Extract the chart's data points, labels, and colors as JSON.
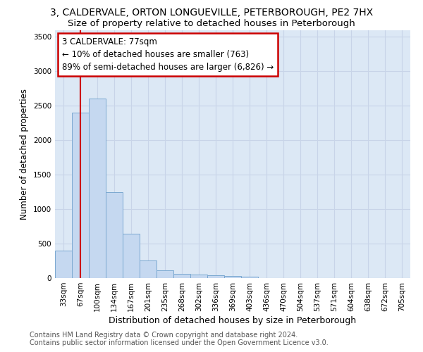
{
  "title": "3, CALDERVALE, ORTON LONGUEVILLE, PETERBOROUGH, PE2 7HX",
  "subtitle": "Size of property relative to detached houses in Peterborough",
  "xlabel": "Distribution of detached houses by size in Peterborough",
  "ylabel": "Number of detached properties",
  "categories": [
    "33sqm",
    "67sqm",
    "100sqm",
    "134sqm",
    "167sqm",
    "201sqm",
    "235sqm",
    "268sqm",
    "302sqm",
    "336sqm",
    "369sqm",
    "403sqm",
    "436sqm",
    "470sqm",
    "504sqm",
    "537sqm",
    "571sqm",
    "604sqm",
    "638sqm",
    "672sqm",
    "705sqm"
  ],
  "values": [
    400,
    2400,
    2600,
    1250,
    640,
    260,
    110,
    60,
    55,
    45,
    30,
    20,
    5,
    2,
    1,
    1,
    1,
    0,
    0,
    0,
    0
  ],
  "bar_color": "#c5d8f0",
  "bar_edge_color": "#7aa8d0",
  "bar_edge_width": 0.7,
  "vline_x": 1.0,
  "vline_color": "#cc0000",
  "annotation_line1": "3 CALDERVALE: 77sqm",
  "annotation_line2": "← 10% of detached houses are smaller (763)",
  "annotation_line3": "89% of semi-detached houses are larger (6,826) →",
  "annotation_box_color": "#cc0000",
  "ylim": [
    0,
    3600
  ],
  "yticks": [
    0,
    500,
    1000,
    1500,
    2000,
    2500,
    3000,
    3500
  ],
  "grid_color": "#c8d4e8",
  "plot_bg_color": "#dce8f5",
  "footer_line1": "Contains HM Land Registry data © Crown copyright and database right 2024.",
  "footer_line2": "Contains public sector information licensed under the Open Government Licence v3.0.",
  "title_fontsize": 10,
  "subtitle_fontsize": 9.5,
  "xlabel_fontsize": 9,
  "ylabel_fontsize": 8.5,
  "tick_fontsize": 7.5,
  "footer_fontsize": 7
}
